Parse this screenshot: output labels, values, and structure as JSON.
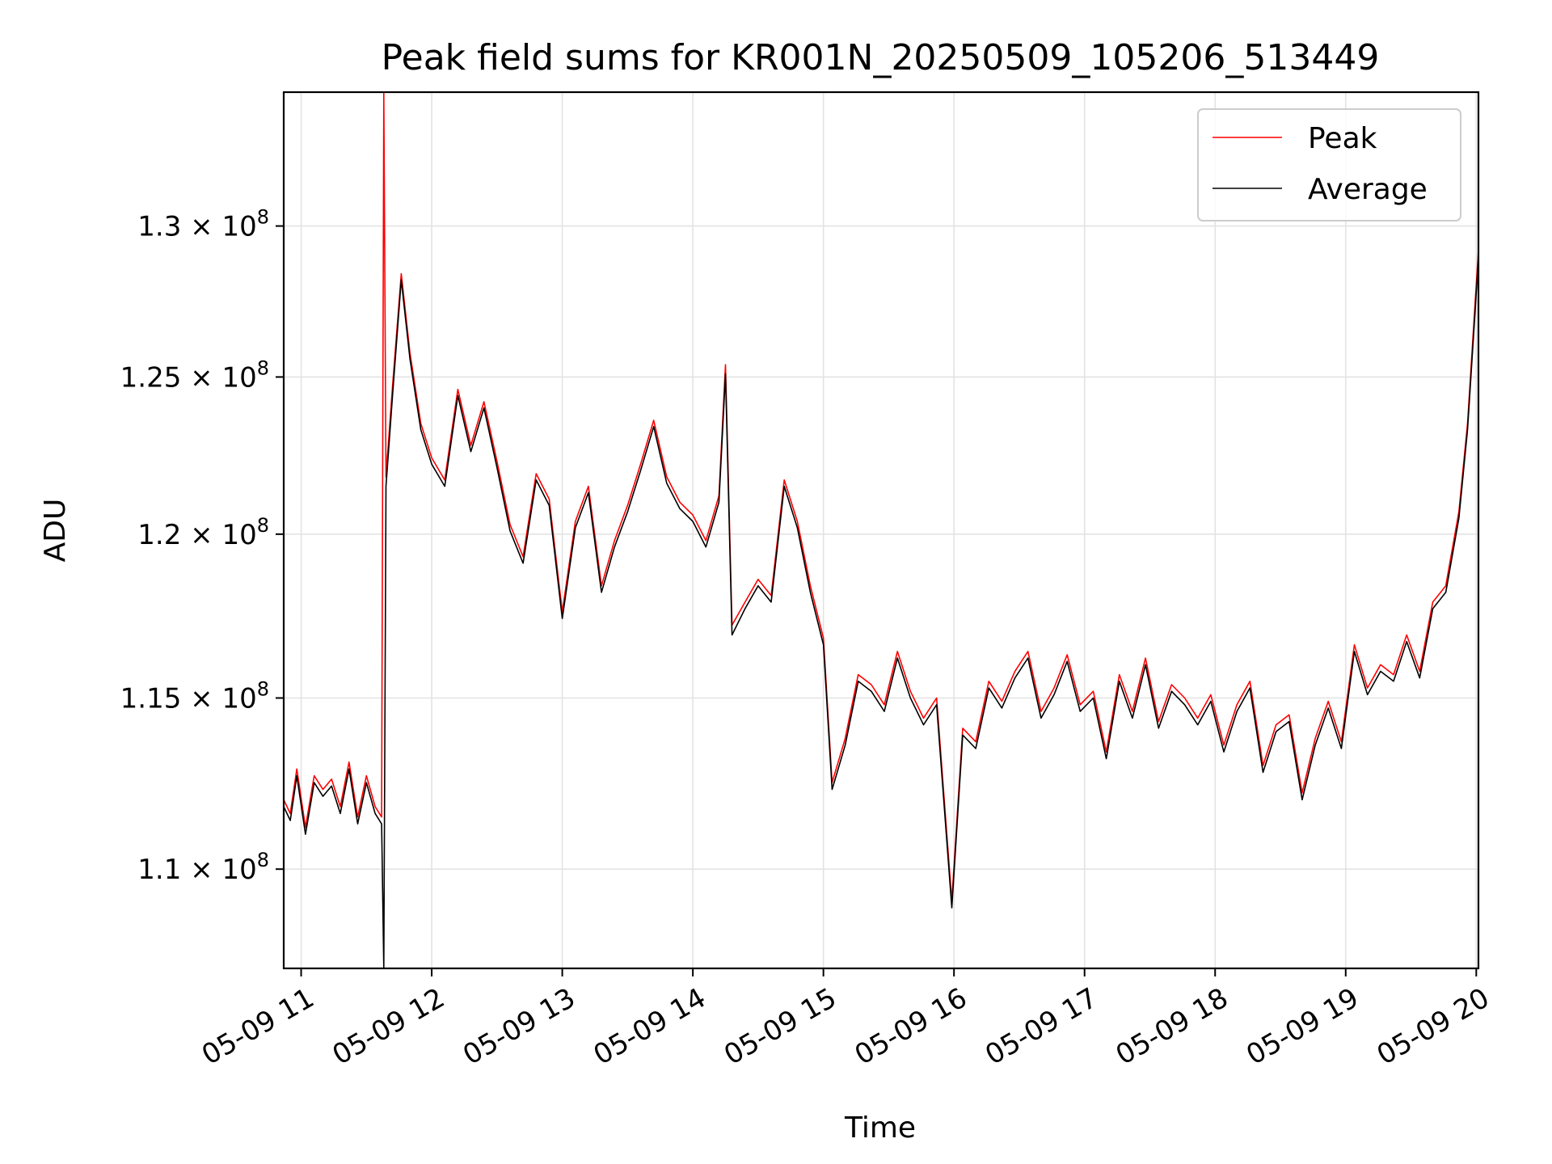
{
  "chart_data": {
    "type": "line",
    "title": "Peak field sums for KR001N_20250509_105206_513449",
    "xlabel": "Time",
    "ylabel": "ADU",
    "x_axis": {
      "ticks": [
        "05-09 11",
        "05-09 12",
        "05-09 13",
        "05-09 14",
        "05-09 15",
        "05-09 16",
        "05-09 17",
        "05-09 18",
        "05-09 19",
        "05-09 20"
      ],
      "range": [
        "2025-05-09 10:52",
        "2025-05-09 20:01"
      ]
    },
    "y_axis": {
      "scale": "log",
      "ticks": [
        {
          "value": 110000000,
          "mantissa": "1.1",
          "exponent": "8"
        },
        {
          "value": 115000000,
          "mantissa": "1.15",
          "exponent": "8"
        },
        {
          "value": 120000000,
          "mantissa": "1.2",
          "exponent": "8"
        },
        {
          "value": 125000000,
          "mantissa": "1.25",
          "exponent": "8"
        },
        {
          "value": 130000000,
          "mantissa": "1.3",
          "exponent": "8"
        }
      ],
      "ylim": [
        107200000,
        134600000
      ]
    },
    "grid": true,
    "legend": {
      "position": "top-right"
    },
    "series": [
      {
        "name": "Peak",
        "color": "#ff0000",
        "points": [
          [
            "2025-05-09 10:52",
            112000000
          ],
          [
            "2025-05-09 10:55",
            111600000
          ],
          [
            "2025-05-09 10:58",
            112900000
          ],
          [
            "2025-05-09 11:02",
            111200000
          ],
          [
            "2025-05-09 11:06",
            112700000
          ],
          [
            "2025-05-09 11:10",
            112300000
          ],
          [
            "2025-05-09 11:14",
            112600000
          ],
          [
            "2025-05-09 11:18",
            111800000
          ],
          [
            "2025-05-09 11:22",
            113100000
          ],
          [
            "2025-05-09 11:26",
            111500000
          ],
          [
            "2025-05-09 11:30",
            112700000
          ],
          [
            "2025-05-09 11:34",
            111800000
          ],
          [
            "2025-05-09 11:37",
            111500000
          ],
          [
            "2025-05-09 11:38",
            134600000
          ],
          [
            "2025-05-09 11:39",
            121800000
          ],
          [
            "2025-05-09 11:42",
            124700000
          ],
          [
            "2025-05-09 11:46",
            128400000
          ],
          [
            "2025-05-09 11:50",
            125800000
          ],
          [
            "2025-05-09 11:55",
            123500000
          ],
          [
            "2025-05-09 12:00",
            122400000
          ],
          [
            "2025-05-09 12:06",
            121700000
          ],
          [
            "2025-05-09 12:12",
            124600000
          ],
          [
            "2025-05-09 12:18",
            122800000
          ],
          [
            "2025-05-09 12:24",
            124200000
          ],
          [
            "2025-05-09 12:30",
            122300000
          ],
          [
            "2025-05-09 12:36",
            120300000
          ],
          [
            "2025-05-09 12:42",
            119300000
          ],
          [
            "2025-05-09 12:48",
            121900000
          ],
          [
            "2025-05-09 12:54",
            121100000
          ],
          [
            "2025-05-09 13:00",
            117600000
          ],
          [
            "2025-05-09 13:06",
            120400000
          ],
          [
            "2025-05-09 13:12",
            121500000
          ],
          [
            "2025-05-09 13:18",
            118400000
          ],
          [
            "2025-05-09 13:24",
            119800000
          ],
          [
            "2025-05-09 13:30",
            120900000
          ],
          [
            "2025-05-09 13:36",
            122200000
          ],
          [
            "2025-05-09 13:42",
            123600000
          ],
          [
            "2025-05-09 13:48",
            121800000
          ],
          [
            "2025-05-09 13:54",
            121000000
          ],
          [
            "2025-05-09 14:00",
            120600000
          ],
          [
            "2025-05-09 14:06",
            119800000
          ],
          [
            "2025-05-09 14:12",
            121200000
          ],
          [
            "2025-05-09 14:15",
            125400000
          ],
          [
            "2025-05-09 14:18",
            117200000
          ],
          [
            "2025-05-09 14:24",
            117900000
          ],
          [
            "2025-05-09 14:30",
            118600000
          ],
          [
            "2025-05-09 14:36",
            118100000
          ],
          [
            "2025-05-09 14:42",
            121700000
          ],
          [
            "2025-05-09 14:48",
            120400000
          ],
          [
            "2025-05-09 14:54",
            118400000
          ],
          [
            "2025-05-09 15:00",
            116800000
          ],
          [
            "2025-05-09 15:04",
            112500000
          ],
          [
            "2025-05-09 15:10",
            113800000
          ],
          [
            "2025-05-09 15:16",
            115700000
          ],
          [
            "2025-05-09 15:22",
            115400000
          ],
          [
            "2025-05-09 15:28",
            114800000
          ],
          [
            "2025-05-09 15:34",
            116400000
          ],
          [
            "2025-05-09 15:40",
            115200000
          ],
          [
            "2025-05-09 15:46",
            114400000
          ],
          [
            "2025-05-09 15:52",
            115000000
          ],
          [
            "2025-05-09 15:59",
            109100000
          ],
          [
            "2025-05-09 16:04",
            114100000
          ],
          [
            "2025-05-09 16:10",
            113700000
          ],
          [
            "2025-05-09 16:16",
            115500000
          ],
          [
            "2025-05-09 16:22",
            114900000
          ],
          [
            "2025-05-09 16:28",
            115800000
          ],
          [
            "2025-05-09 16:34",
            116400000
          ],
          [
            "2025-05-09 16:40",
            114600000
          ],
          [
            "2025-05-09 16:46",
            115300000
          ],
          [
            "2025-05-09 16:52",
            116300000
          ],
          [
            "2025-05-09 16:58",
            114800000
          ],
          [
            "2025-05-09 17:04",
            115200000
          ],
          [
            "2025-05-09 17:10",
            113400000
          ],
          [
            "2025-05-09 17:16",
            115700000
          ],
          [
            "2025-05-09 17:22",
            114600000
          ],
          [
            "2025-05-09 17:28",
            116200000
          ],
          [
            "2025-05-09 17:34",
            114300000
          ],
          [
            "2025-05-09 17:40",
            115400000
          ],
          [
            "2025-05-09 17:46",
            115000000
          ],
          [
            "2025-05-09 17:52",
            114400000
          ],
          [
            "2025-05-09 17:58",
            115100000
          ],
          [
            "2025-05-09 18:04",
            113600000
          ],
          [
            "2025-05-09 18:10",
            114800000
          ],
          [
            "2025-05-09 18:16",
            115500000
          ],
          [
            "2025-05-09 18:22",
            113000000
          ],
          [
            "2025-05-09 18:28",
            114200000
          ],
          [
            "2025-05-09 18:34",
            114500000
          ],
          [
            "2025-05-09 18:40",
            112200000
          ],
          [
            "2025-05-09 18:46",
            113800000
          ],
          [
            "2025-05-09 18:52",
            114900000
          ],
          [
            "2025-05-09 18:58",
            113700000
          ],
          [
            "2025-05-09 19:04",
            116600000
          ],
          [
            "2025-05-09 19:10",
            115300000
          ],
          [
            "2025-05-09 19:16",
            116000000
          ],
          [
            "2025-05-09 19:22",
            115700000
          ],
          [
            "2025-05-09 19:28",
            116900000
          ],
          [
            "2025-05-09 19:34",
            115800000
          ],
          [
            "2025-05-09 19:40",
            117900000
          ],
          [
            "2025-05-09 19:46",
            118400000
          ],
          [
            "2025-05-09 19:52",
            120700000
          ],
          [
            "2025-05-09 19:56",
            123500000
          ],
          [
            "2025-05-09 20:01",
            129200000
          ]
        ]
      },
      {
        "name": "Average",
        "color": "#000000",
        "points": [
          [
            "2025-05-09 10:52",
            111800000
          ],
          [
            "2025-05-09 10:55",
            111400000
          ],
          [
            "2025-05-09 10:58",
            112700000
          ],
          [
            "2025-05-09 11:02",
            111000000
          ],
          [
            "2025-05-09 11:06",
            112500000
          ],
          [
            "2025-05-09 11:10",
            112100000
          ],
          [
            "2025-05-09 11:14",
            112400000
          ],
          [
            "2025-05-09 11:18",
            111600000
          ],
          [
            "2025-05-09 11:22",
            112900000
          ],
          [
            "2025-05-09 11:26",
            111300000
          ],
          [
            "2025-05-09 11:30",
            112500000
          ],
          [
            "2025-05-09 11:34",
            111600000
          ],
          [
            "2025-05-09 11:37",
            111300000
          ],
          [
            "2025-05-09 11:38",
            107200000
          ],
          [
            "2025-05-09 11:39",
            121500000
          ],
          [
            "2025-05-09 11:42",
            124400000
          ],
          [
            "2025-05-09 11:46",
            128200000
          ],
          [
            "2025-05-09 11:50",
            125600000
          ],
          [
            "2025-05-09 11:55",
            123300000
          ],
          [
            "2025-05-09 12:00",
            122200000
          ],
          [
            "2025-05-09 12:06",
            121500000
          ],
          [
            "2025-05-09 12:12",
            124400000
          ],
          [
            "2025-05-09 12:18",
            122600000
          ],
          [
            "2025-05-09 12:24",
            124000000
          ],
          [
            "2025-05-09 12:30",
            122100000
          ],
          [
            "2025-05-09 12:36",
            120100000
          ],
          [
            "2025-05-09 12:42",
            119100000
          ],
          [
            "2025-05-09 12:48",
            121700000
          ],
          [
            "2025-05-09 12:54",
            120900000
          ],
          [
            "2025-05-09 13:00",
            117400000
          ],
          [
            "2025-05-09 13:06",
            120200000
          ],
          [
            "2025-05-09 13:12",
            121300000
          ],
          [
            "2025-05-09 13:18",
            118200000
          ],
          [
            "2025-05-09 13:24",
            119600000
          ],
          [
            "2025-05-09 13:30",
            120700000
          ],
          [
            "2025-05-09 13:36",
            122000000
          ],
          [
            "2025-05-09 13:42",
            123400000
          ],
          [
            "2025-05-09 13:48",
            121600000
          ],
          [
            "2025-05-09 13:54",
            120800000
          ],
          [
            "2025-05-09 14:00",
            120400000
          ],
          [
            "2025-05-09 14:06",
            119600000
          ],
          [
            "2025-05-09 14:12",
            121000000
          ],
          [
            "2025-05-09 14:15",
            125100000
          ],
          [
            "2025-05-09 14:18",
            116900000
          ],
          [
            "2025-05-09 14:24",
            117700000
          ],
          [
            "2025-05-09 14:30",
            118400000
          ],
          [
            "2025-05-09 14:36",
            117900000
          ],
          [
            "2025-05-09 14:42",
            121500000
          ],
          [
            "2025-05-09 14:48",
            120200000
          ],
          [
            "2025-05-09 14:54",
            118200000
          ],
          [
            "2025-05-09 15:00",
            116600000
          ],
          [
            "2025-05-09 15:04",
            112300000
          ],
          [
            "2025-05-09 15:10",
            113600000
          ],
          [
            "2025-05-09 15:16",
            115500000
          ],
          [
            "2025-05-09 15:22",
            115200000
          ],
          [
            "2025-05-09 15:28",
            114600000
          ],
          [
            "2025-05-09 15:34",
            116200000
          ],
          [
            "2025-05-09 15:40",
            115000000
          ],
          [
            "2025-05-09 15:46",
            114200000
          ],
          [
            "2025-05-09 15:52",
            114800000
          ],
          [
            "2025-05-09 15:59",
            108900000
          ],
          [
            "2025-05-09 16:04",
            113900000
          ],
          [
            "2025-05-09 16:10",
            113500000
          ],
          [
            "2025-05-09 16:16",
            115300000
          ],
          [
            "2025-05-09 16:22",
            114700000
          ],
          [
            "2025-05-09 16:28",
            115600000
          ],
          [
            "2025-05-09 16:34",
            116200000
          ],
          [
            "2025-05-09 16:40",
            114400000
          ],
          [
            "2025-05-09 16:46",
            115100000
          ],
          [
            "2025-05-09 16:52",
            116100000
          ],
          [
            "2025-05-09 16:58",
            114600000
          ],
          [
            "2025-05-09 17:04",
            115000000
          ],
          [
            "2025-05-09 17:10",
            113200000
          ],
          [
            "2025-05-09 17:16",
            115500000
          ],
          [
            "2025-05-09 17:22",
            114400000
          ],
          [
            "2025-05-09 17:28",
            116000000
          ],
          [
            "2025-05-09 17:34",
            114100000
          ],
          [
            "2025-05-09 17:40",
            115200000
          ],
          [
            "2025-05-09 17:46",
            114800000
          ],
          [
            "2025-05-09 17:52",
            114200000
          ],
          [
            "2025-05-09 17:58",
            114900000
          ],
          [
            "2025-05-09 18:04",
            113400000
          ],
          [
            "2025-05-09 18:10",
            114600000
          ],
          [
            "2025-05-09 18:16",
            115300000
          ],
          [
            "2025-05-09 18:22",
            112800000
          ],
          [
            "2025-05-09 18:28",
            114000000
          ],
          [
            "2025-05-09 18:34",
            114300000
          ],
          [
            "2025-05-09 18:40",
            112000000
          ],
          [
            "2025-05-09 18:46",
            113600000
          ],
          [
            "2025-05-09 18:52",
            114700000
          ],
          [
            "2025-05-09 18:58",
            113500000
          ],
          [
            "2025-05-09 19:04",
            116400000
          ],
          [
            "2025-05-09 19:10",
            115100000
          ],
          [
            "2025-05-09 19:16",
            115800000
          ],
          [
            "2025-05-09 19:22",
            115500000
          ],
          [
            "2025-05-09 19:28",
            116700000
          ],
          [
            "2025-05-09 19:34",
            115600000
          ],
          [
            "2025-05-09 19:40",
            117700000
          ],
          [
            "2025-05-09 19:46",
            118200000
          ],
          [
            "2025-05-09 19:52",
            120500000
          ],
          [
            "2025-05-09 19:56",
            123300000
          ],
          [
            "2025-05-09 20:01",
            128900000
          ]
        ]
      }
    ]
  }
}
